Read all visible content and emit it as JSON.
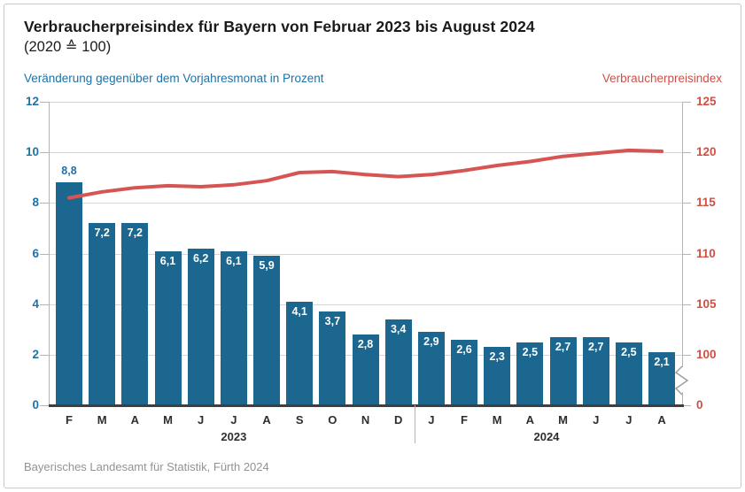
{
  "header": {
    "title": "Verbraucherpreisindex für Bayern von Februar 2023 bis August 2024",
    "subtitle": "(2020 ≙ 100)"
  },
  "axis_captions": {
    "left": "Veränderung gegenüber dem Vorjahresmonat in Prozent",
    "right": "Verbraucherpreisindex"
  },
  "footer": {
    "source": "Bayerisches Landesamt für Statistik, Fürth 2024"
  },
  "colors": {
    "bar": "#1b678f",
    "line": "#d65552",
    "blue_text": "#1d72a6",
    "red_text": "#cf4f45",
    "grid": "#d6d6d6",
    "axis": "#b4b4b4",
    "baseline": "#3f3f3f",
    "month_label": "#2e2e2e",
    "source_text": "#8f9496"
  },
  "chart_data": {
    "type": "bar",
    "subtype": "bar+line-combo",
    "categories": [
      "F",
      "M",
      "A",
      "M",
      "J",
      "J",
      "A",
      "S",
      "O",
      "N",
      "D",
      "J",
      "F",
      "M",
      "A",
      "M",
      "J",
      "J",
      "A"
    ],
    "year_groups": [
      {
        "label": "2023",
        "first_index": 0,
        "last_index": 10
      },
      {
        "label": "2024",
        "first_index": 11,
        "last_index": 18
      }
    ],
    "series": [
      {
        "name": "Veränderung gegenüber dem Vorjahresmonat in Prozent",
        "type": "bar",
        "axis": "left",
        "values": [
          8.8,
          7.2,
          7.2,
          6.1,
          6.2,
          6.1,
          5.9,
          4.1,
          3.7,
          2.8,
          3.4,
          2.9,
          2.6,
          2.3,
          2.5,
          2.7,
          2.7,
          2.5,
          2.1
        ],
        "value_labels": [
          "8,8",
          "7,2",
          "7,2",
          "6,1",
          "6,2",
          "6,1",
          "5,9",
          "4,1",
          "3,7",
          "2,8",
          "3,4",
          "2,9",
          "2,6",
          "2,3",
          "2,5",
          "2,7",
          "2,7",
          "2,5",
          "2,1"
        ],
        "first_label_position": "above-bar"
      },
      {
        "name": "Verbraucherpreisindex",
        "type": "line",
        "axis": "right",
        "values": [
          115.5,
          116.1,
          116.5,
          116.7,
          116.6,
          116.8,
          117.2,
          118.0,
          118.1,
          117.8,
          117.6,
          117.8,
          118.2,
          118.7,
          119.1,
          119.6,
          119.9,
          120.2,
          120.1
        ]
      }
    ],
    "left_axis": {
      "label": "Veränderung gegenüber dem Vorjahresmonat in Prozent",
      "min": 0,
      "max": 12,
      "tick_step": 2,
      "ticks": [
        0,
        2,
        4,
        6,
        8,
        10,
        12
      ]
    },
    "right_axis": {
      "label": "Verbraucherpreisindex",
      "ticks": [
        100,
        105,
        110,
        115,
        120,
        125
      ],
      "zero_tick": "0",
      "axis_break": true
    },
    "grid": true,
    "legend_position": "none"
  }
}
